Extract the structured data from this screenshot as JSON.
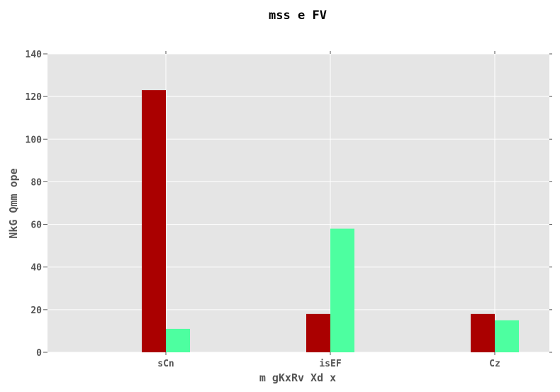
{
  "chart_data": {
    "type": "bar",
    "title": "mss e FV",
    "xlabel": "m gKxRv Xd x",
    "ylabel": "NkG Qmm ope",
    "categories": [
      "sCn",
      "isEF",
      "Cz"
    ],
    "series": [
      {
        "values": [
          123,
          18,
          18
        ],
        "color": "#aa0000"
      },
      {
        "values": [
          11,
          58,
          15
        ],
        "color": "#4dffa0"
      }
    ],
    "ylim": [
      0,
      140
    ],
    "yticks": [
      0,
      20,
      40,
      60,
      80,
      100,
      120,
      140
    ],
    "grid": true,
    "legend": "none",
    "plot_background": "#e5e5e5",
    "grid_color": "#ffffff"
  }
}
